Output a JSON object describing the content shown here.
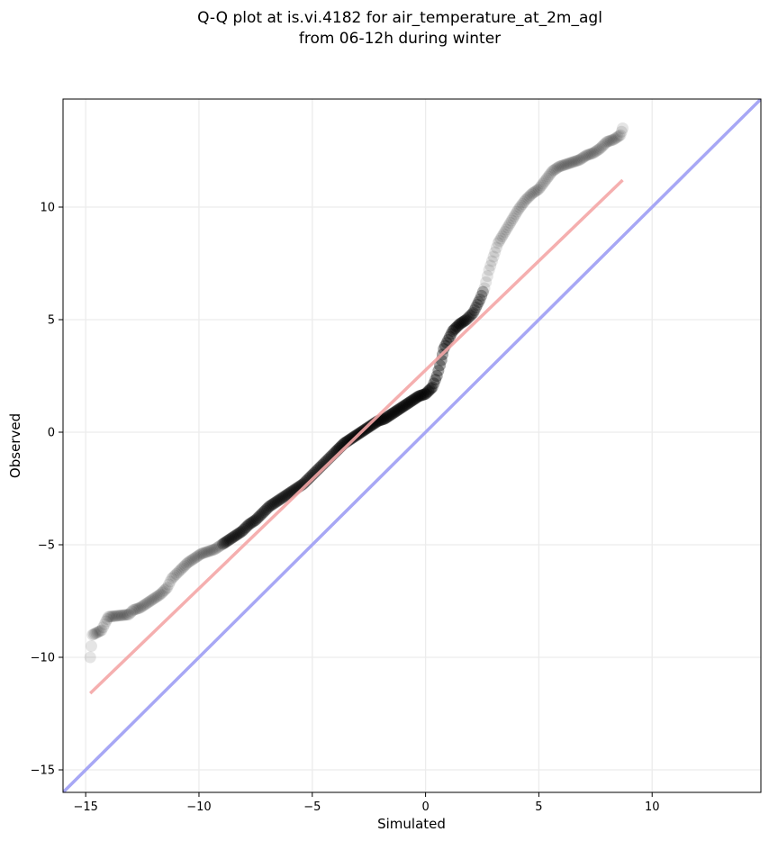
{
  "chart_data": {
    "type": "scatter",
    "title": "Q-Q plot at is.vi.4182 for air_temperature_at_2m_agl",
    "subtitle": "from 06-12h during winter",
    "xlabel": "Simulated",
    "ylabel": "Observed",
    "xlim": [
      -16,
      14.8
    ],
    "ylim": [
      -16,
      14.8
    ],
    "x_ticks": [
      -15,
      -10,
      -5,
      0,
      5,
      10
    ],
    "y_ticks": [
      -15,
      -10,
      -5,
      0,
      5,
      10
    ],
    "x_tick_labels": [
      "−15",
      "−10",
      "−5",
      "0",
      "5",
      "10"
    ],
    "y_tick_labels": [
      "−15",
      "−10",
      "−5",
      "0",
      "5",
      "10"
    ],
    "grid": true,
    "quantiles_x": [
      -14.8,
      -14.7,
      -14.3,
      -14.1,
      -14.0,
      -13.1,
      -12.9,
      -12.6,
      -12.3,
      -12.0,
      -11.7,
      -11.4,
      -11.2,
      -11.0,
      -10.8,
      -10.5,
      -10.2,
      -9.9,
      -9.6,
      -9.3,
      -9.0,
      -8.7,
      -8.4,
      -8.1,
      -7.8,
      -7.5,
      -7.2,
      -6.9,
      -6.6,
      -6.3,
      -6.0,
      -5.7,
      -5.4,
      -5.1,
      -4.8,
      -4.5,
      -4.2,
      -3.9,
      -3.6,
      -3.3,
      -3.0,
      -2.7,
      -2.4,
      -2.1,
      -1.8,
      -1.5,
      -1.2,
      -0.9,
      -0.6,
      -0.3,
      0.0,
      0.3,
      0.5,
      0.7,
      0.8,
      1.0,
      1.2,
      1.5,
      1.8,
      2.1,
      2.4,
      2.6,
      2.8,
      3.0,
      3.2,
      3.5,
      3.8,
      4.1,
      4.4,
      4.7,
      5.0,
      5.3,
      5.6,
      5.9,
      6.2,
      6.5,
      6.8,
      7.1,
      7.4,
      7.7,
      8.0,
      8.3,
      8.6,
      8.7
    ],
    "quantiles_y": [
      -10.0,
      -9.0,
      -8.8,
      -8.4,
      -8.2,
      -8.1,
      -7.9,
      -7.8,
      -7.6,
      -7.4,
      -7.2,
      -6.9,
      -6.5,
      -6.3,
      -6.1,
      -5.8,
      -5.6,
      -5.4,
      -5.3,
      -5.2,
      -5.0,
      -4.8,
      -4.6,
      -4.4,
      -4.1,
      -3.9,
      -3.6,
      -3.3,
      -3.1,
      -2.9,
      -2.7,
      -2.5,
      -2.3,
      -2.0,
      -1.7,
      -1.4,
      -1.1,
      -0.8,
      -0.5,
      -0.3,
      -0.1,
      0.1,
      0.3,
      0.5,
      0.6,
      0.8,
      1.0,
      1.2,
      1.4,
      1.6,
      1.7,
      2.0,
      2.5,
      3.2,
      3.7,
      4.1,
      4.5,
      4.8,
      5.0,
      5.3,
      5.9,
      6.4,
      7.2,
      7.8,
      8.4,
      8.9,
      9.4,
      9.9,
      10.3,
      10.6,
      10.8,
      11.2,
      11.6,
      11.8,
      11.9,
      12.0,
      12.1,
      12.3,
      12.4,
      12.6,
      12.9,
      13.0,
      13.2,
      13.5
    ],
    "fit_line": {
      "x": [
        -14.8,
        8.7
      ],
      "y": [
        -11.6,
        11.2
      ],
      "color": "#f4a6a6"
    },
    "identity_line": {
      "x": [
        -16,
        14.8
      ],
      "y": [
        -16,
        14.8
      ],
      "color": "#a7a7f5"
    }
  }
}
